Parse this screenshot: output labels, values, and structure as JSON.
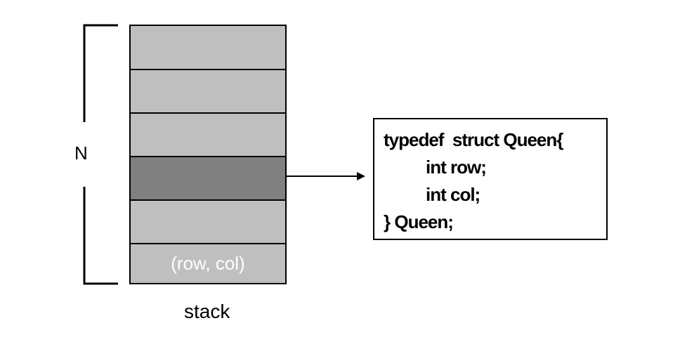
{
  "left_bracket_label": "N",
  "stack": {
    "label": "stack",
    "cells": [
      {
        "text": "",
        "highlighted": false
      },
      {
        "text": "",
        "highlighted": false
      },
      {
        "text": "",
        "highlighted": false
      },
      {
        "text": "",
        "highlighted": true
      },
      {
        "text": "",
        "highlighted": false
      },
      {
        "text": "(row, col)",
        "highlighted": false
      }
    ]
  },
  "code_box": {
    "lines": [
      "typedef  struct Queen{",
      "int row;",
      "int col;",
      "} Queen;"
    ]
  },
  "colors": {
    "cell_fill": "#bfbfbf",
    "highlight_fill": "#808080",
    "cell_text": "#ffffff",
    "stroke": "#000000"
  }
}
